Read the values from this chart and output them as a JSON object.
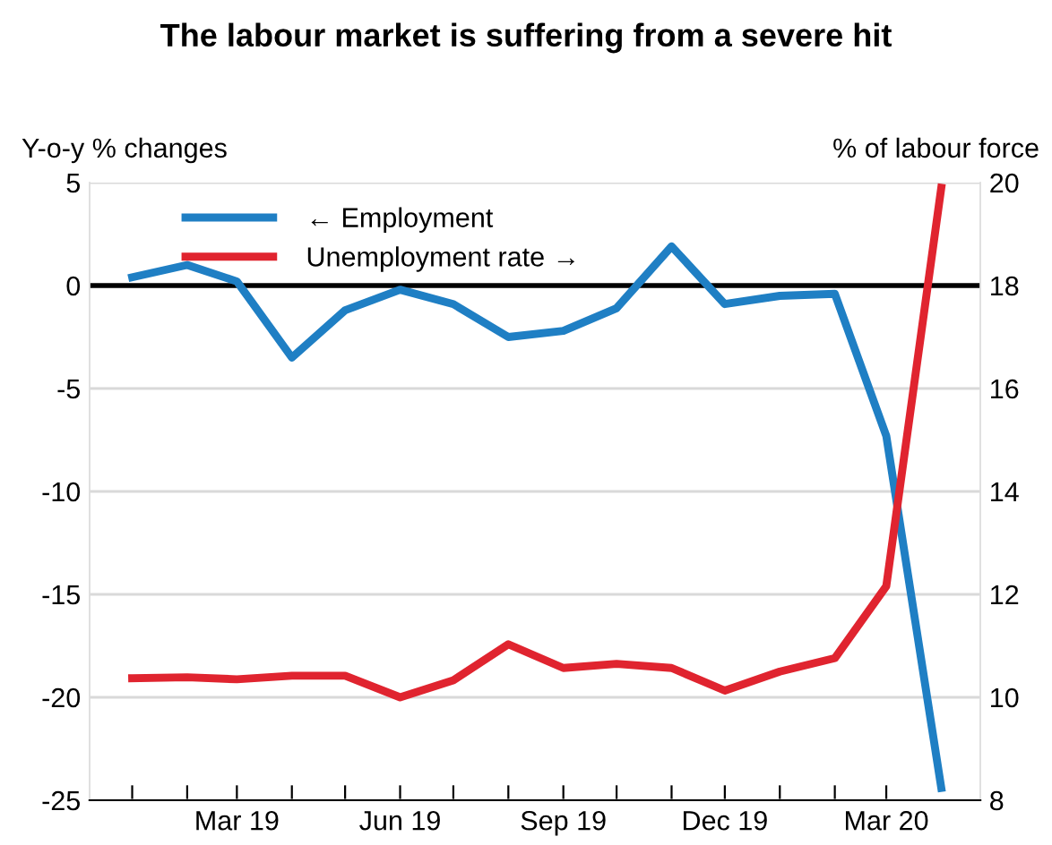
{
  "chart_data": {
    "type": "line",
    "title": "The labour market is suffering from a severe hit",
    "xlabel": null,
    "ylabel": "Y-o-y % changes",
    "y2label": "% of labour force",
    "x": [
      "2019-01",
      "2019-02",
      "2019-03",
      "2019-04",
      "2019-05",
      "2019-06",
      "2019-07",
      "2019-08",
      "2019-09",
      "2019-10",
      "2019-11",
      "2019-12",
      "2020-01",
      "2020-02",
      "2020-03",
      "2020-04"
    ],
    "series": [
      {
        "name": "← Employment",
        "color": "#1f7fc4",
        "values": [
          0.4,
          1.0,
          0.2,
          -3.5,
          -1.2,
          -0.2,
          -0.9,
          -2.5,
          -2.2,
          -1.1,
          1.9,
          -0.9,
          -0.5,
          -0.4,
          -7.3,
          -24.4
        ]
      },
      {
        "name": "Unemployment rate →",
        "color": "#e0242f",
        "axis": "y2",
        "values": [
          10.37,
          10.39,
          10.35,
          10.42,
          10.42,
          10.0,
          10.33,
          11.03,
          10.57,
          10.65,
          10.57,
          10.13,
          10.5,
          10.76,
          12.16,
          19.9
        ]
      }
    ],
    "xlim": [
      "2018-12-08",
      "2020-04-23"
    ],
    "xticks": [
      {
        "value": "2019-01",
        "label": null
      },
      {
        "value": "2019-02",
        "label": null
      },
      {
        "value": "2019-03",
        "label": "Mar 19"
      },
      {
        "value": "2019-04",
        "label": null
      },
      {
        "value": "2019-05",
        "label": null
      },
      {
        "value": "2019-06",
        "label": "Jun 19"
      },
      {
        "value": "2019-07",
        "label": null
      },
      {
        "value": "2019-08",
        "label": null
      },
      {
        "value": "2019-09",
        "label": "Sep 19"
      },
      {
        "value": "2019-10",
        "label": null
      },
      {
        "value": "2019-11",
        "label": null
      },
      {
        "value": "2019-12",
        "label": "Dec 19"
      },
      {
        "value": "2020-01",
        "label": null
      },
      {
        "value": "2020-02",
        "label": null
      },
      {
        "value": "2020-03",
        "label": "Mar 20"
      }
    ],
    "ylim": [
      -25,
      5
    ],
    "yticks": [
      -25,
      -20,
      -15,
      -10,
      -5,
      0,
      5
    ],
    "y2lim": [
      8,
      20
    ],
    "y2ticks": [
      8,
      10,
      12,
      14,
      16,
      18,
      20
    ],
    "ref_lines": [
      {
        "axis": "y",
        "value": 0,
        "color": "#000000"
      }
    ],
    "grid": "y",
    "legend": "top left",
    "line_style": "solid",
    "marker": "none"
  }
}
